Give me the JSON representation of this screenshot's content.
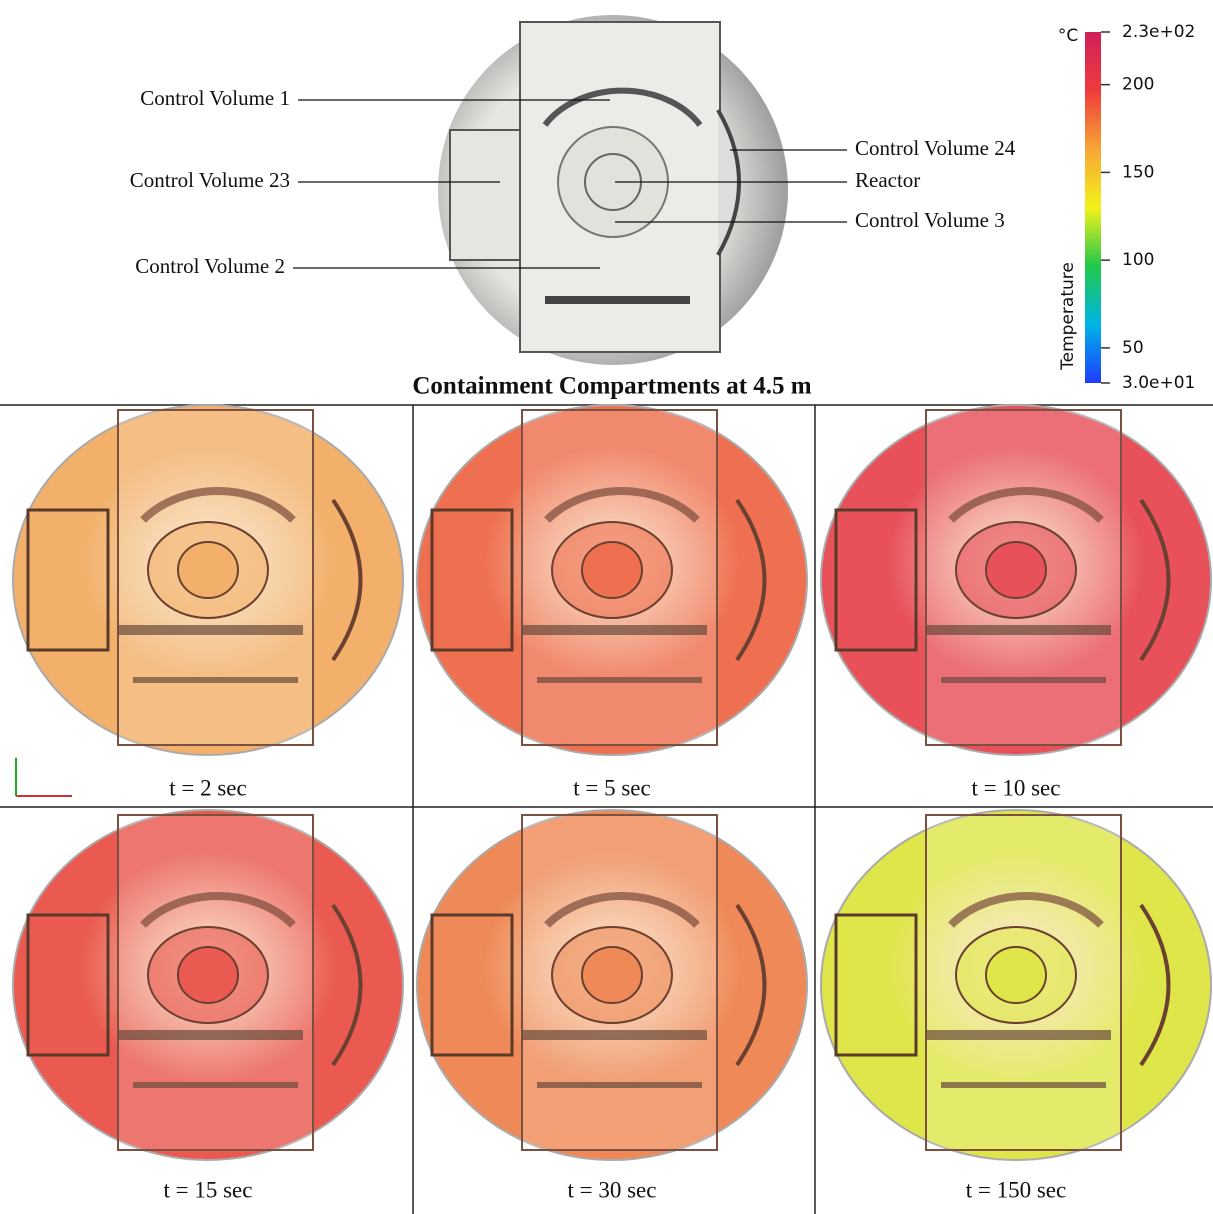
{
  "title": "Containment Compartments at 4.5 m",
  "overview_labels": [
    "Control Volume 1",
    "Control Volume 23",
    "Control Volume 2",
    "Control Volume 24",
    "Reactor",
    "Control Volume 3"
  ],
  "colorbar": {
    "label": "Temperature",
    "unit": "°C",
    "range": [
      30,
      230
    ],
    "ticks": [
      {
        "value": 230,
        "label": "2.3e+02"
      },
      200,
      150,
      100,
      50,
      {
        "value": 30,
        "label": "3.0e+01"
      }
    ],
    "colors": [
      "#1f3cff",
      "#00b4e6",
      "#22c84a",
      "#f2f21a",
      "#f7a535",
      "#ee3c3c",
      "#d0205a"
    ]
  },
  "panels": [
    {
      "caption": "t = 2 sec",
      "color": "#f2b06a"
    },
    {
      "caption": "t = 5 sec",
      "color": "#ee7050"
    },
    {
      "caption": "t = 10 sec",
      "color": "#e8505a"
    },
    {
      "caption": "t = 15 sec",
      "color": "#ea5a50"
    },
    {
      "caption": "t = 30 sec",
      "color": "#ef8a58"
    },
    {
      "caption": "t = 150 sec",
      "color": "#dfe64a"
    }
  ]
}
